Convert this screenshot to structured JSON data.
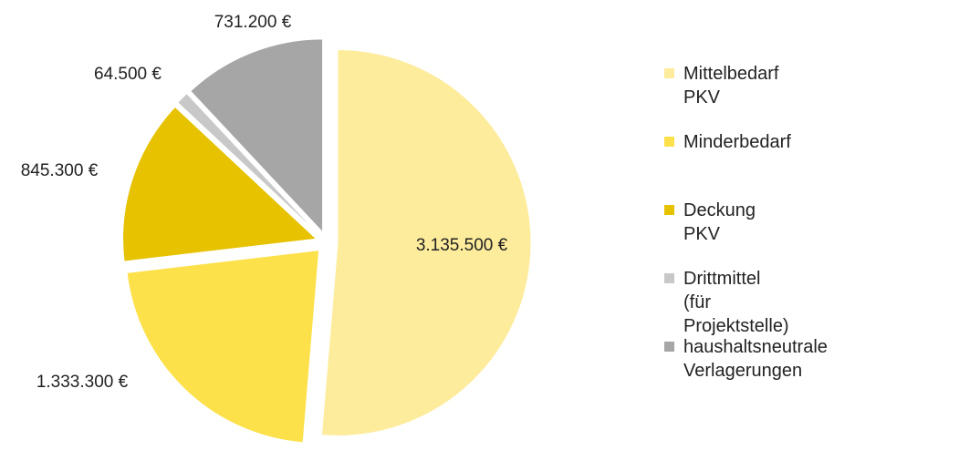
{
  "chart_data": {
    "type": "pie",
    "categories": [
      "Mittelbedarf PKV",
      "Minderbedarf",
      "Deckung PKV",
      "Drittmittel (für Projektstelle)",
      "haushaltsneutrale\nVerlagerungen"
    ],
    "values": [
      3135500,
      1333300,
      845300,
      64500,
      731200
    ],
    "value_labels": [
      "3.135.500 €",
      "1.333.300 €",
      "845.300 €",
      "64.500 €",
      "731.200 €"
    ],
    "colors": [
      "#fdec9c",
      "#fde14a",
      "#e6c200",
      "#c8c8c8",
      "#a6a6a6"
    ],
    "legend": "right"
  }
}
